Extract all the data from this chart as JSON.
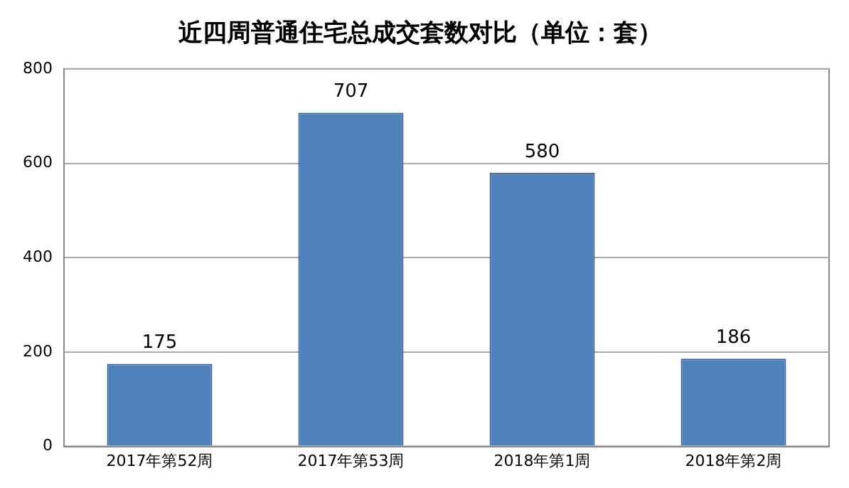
{
  "chart_data": {
    "type": "bar",
    "title": "近四周普通住宅总成交套数对比（单位：套）",
    "categories": [
      "2017年第52周",
      "2017年第53周",
      "2018年第1周",
      "2018年第2周"
    ],
    "values": [
      175,
      707,
      580,
      186
    ],
    "color": "#4f81bd",
    "ylim": [
      0,
      800
    ],
    "yticks": [
      0,
      200,
      400,
      600,
      800
    ],
    "grid": "y",
    "data_labels": true,
    "legend": false
  }
}
